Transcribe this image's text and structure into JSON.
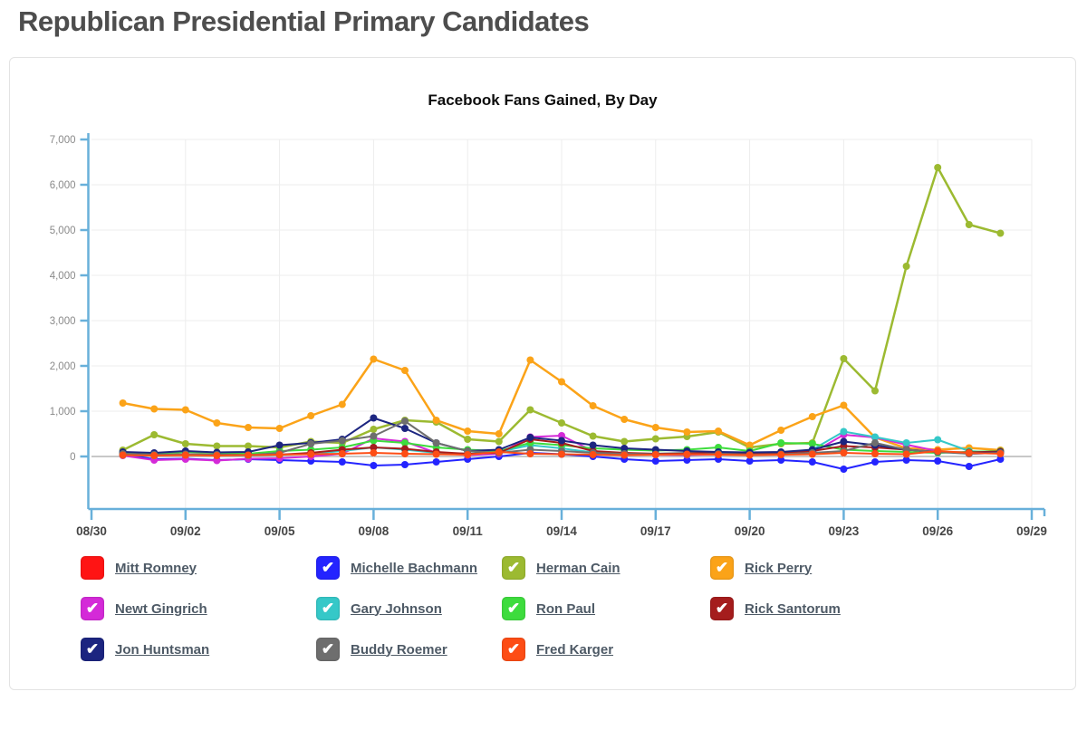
{
  "page": {
    "title": "Republican Presidential Primary Candidates"
  },
  "legend": {
    "check_glyph": "✔"
  },
  "chart_data": {
    "type": "line",
    "title": "Facebook Fans Gained, By Day",
    "xlabel": "",
    "ylabel": "",
    "grid": true,
    "legend_position": "bottom",
    "ylim": [
      -1160,
      7000
    ],
    "y_ticks": [
      0,
      1000,
      2000,
      3000,
      4000,
      5000,
      6000,
      7000
    ],
    "y_tick_labels": [
      "0",
      "1,000",
      "2,000",
      "3,000",
      "4,000",
      "5,000",
      "6,000",
      "7,000"
    ],
    "x_tick_labels": [
      "08/30",
      "09/02",
      "09/05",
      "09/08",
      "09/11",
      "09/14",
      "09/17",
      "09/20",
      "09/23",
      "09/26",
      "09/29"
    ],
    "x_tick_every": 3,
    "x_total_days": 31,
    "x_data_start_day": 1,
    "x": [
      "08/31",
      "09/01",
      "09/02",
      "09/03",
      "09/04",
      "09/05",
      "09/06",
      "09/07",
      "09/08",
      "09/09",
      "09/10",
      "09/11",
      "09/12",
      "09/13",
      "09/14",
      "09/15",
      "09/16",
      "09/17",
      "09/18",
      "09/19",
      "09/20",
      "09/21",
      "09/22",
      "09/23",
      "09/24",
      "09/25",
      "09/26",
      "09/27",
      "09/28"
    ],
    "axis_color": "#68b0da",
    "grid_color": "#ededed",
    "zero_line_color": "#b5b5b5",
    "y_tick_label_color": "#8a8a8a",
    "x_tick_label_color": "#454545",
    "series": [
      {
        "name": "Mitt Romney",
        "color": "#ff1414",
        "checked": false,
        "width": 2,
        "values": []
      },
      {
        "name": "Michelle Bachmann",
        "color": "#2424ff",
        "checked": true,
        "width": 2,
        "values": [
          50,
          -60,
          -50,
          -80,
          -60,
          -80,
          -100,
          -120,
          -200,
          -180,
          -120,
          -60,
          0,
          80,
          50,
          0,
          -60,
          -100,
          -80,
          -60,
          -100,
          -80,
          -120,
          -280,
          -120,
          -80,
          -100,
          -220,
          -60
        ]
      },
      {
        "name": "Herman Cain",
        "color": "#9cba31",
        "checked": true,
        "width": 2.5,
        "values": [
          140,
          480,
          280,
          230,
          230,
          200,
          330,
          300,
          600,
          800,
          760,
          380,
          330,
          1030,
          740,
          450,
          330,
          390,
          440,
          540,
          200,
          280,
          300,
          2160,
          1450,
          4200,
          6380,
          5120,
          4930
        ]
      },
      {
        "name": "Rick Perry",
        "color": "#fba318",
        "checked": true,
        "width": 2.5,
        "values": [
          1180,
          1050,
          1030,
          740,
          640,
          620,
          900,
          1150,
          2150,
          1900,
          800,
          560,
          500,
          2130,
          1650,
          1120,
          820,
          640,
          540,
          560,
          250,
          580,
          880,
          1130,
          420,
          180,
          150,
          190,
          140
        ]
      },
      {
        "name": "Newt Gingrich",
        "color": "#d42ad8",
        "checked": true,
        "width": 2,
        "values": [
          20,
          -80,
          -60,
          -90,
          -50,
          -40,
          0,
          60,
          400,
          330,
          80,
          30,
          60,
          430,
          460,
          120,
          60,
          40,
          30,
          50,
          60,
          40,
          80,
          480,
          420,
          260,
          120,
          60,
          80
        ]
      },
      {
        "name": "Gary Johnson",
        "color": "#35c8c8",
        "checked": true,
        "width": 2,
        "values": [
          30,
          20,
          40,
          30,
          20,
          40,
          60,
          120,
          200,
          150,
          80,
          60,
          100,
          250,
          180,
          90,
          70,
          60,
          80,
          100,
          60,
          80,
          150,
          550,
          430,
          300,
          370,
          120,
          80
        ]
      },
      {
        "name": "Ron Paul",
        "color": "#3ddc3d",
        "checked": true,
        "width": 2,
        "values": [
          80,
          60,
          100,
          80,
          60,
          120,
          150,
          200,
          350,
          300,
          200,
          150,
          120,
          300,
          250,
          180,
          150,
          130,
          150,
          200,
          120,
          300,
          280,
          150,
          120,
          100,
          80,
          100,
          120
        ]
      },
      {
        "name": "Rick Santorum",
        "color": "#a51d1d",
        "checked": true,
        "width": 2,
        "values": [
          40,
          30,
          50,
          40,
          30,
          40,
          80,
          150,
          200,
          170,
          100,
          60,
          80,
          380,
          300,
          120,
          80,
          60,
          70,
          90,
          60,
          80,
          120,
          230,
          200,
          150,
          100,
          90,
          110
        ]
      },
      {
        "name": "Jon Huntsman",
        "color": "#1c2580",
        "checked": true,
        "width": 2,
        "values": [
          100,
          80,
          120,
          90,
          100,
          250,
          300,
          380,
          850,
          620,
          300,
          120,
          150,
          420,
          350,
          250,
          180,
          150,
          120,
          100,
          90,
          100,
          150,
          330,
          250,
          150,
          100,
          80,
          90
        ]
      },
      {
        "name": "Buddy Roemer",
        "color": "#6e6e6e",
        "checked": true,
        "width": 2,
        "values": [
          60,
          40,
          50,
          40,
          30,
          80,
          280,
          350,
          450,
          780,
          300,
          120,
          80,
          150,
          120,
          80,
          60,
          50,
          40,
          60,
          40,
          50,
          80,
          120,
          300,
          150,
          100,
          60,
          80
        ]
      },
      {
        "name": "Fred Karger",
        "color": "#fd4d15",
        "checked": true,
        "width": 2,
        "values": [
          30,
          20,
          30,
          20,
          30,
          40,
          50,
          60,
          80,
          60,
          50,
          40,
          100,
          60,
          50,
          40,
          30,
          40,
          50,
          40,
          30,
          40,
          50,
          80,
          60,
          50,
          120,
          80,
          60
        ]
      }
    ]
  }
}
